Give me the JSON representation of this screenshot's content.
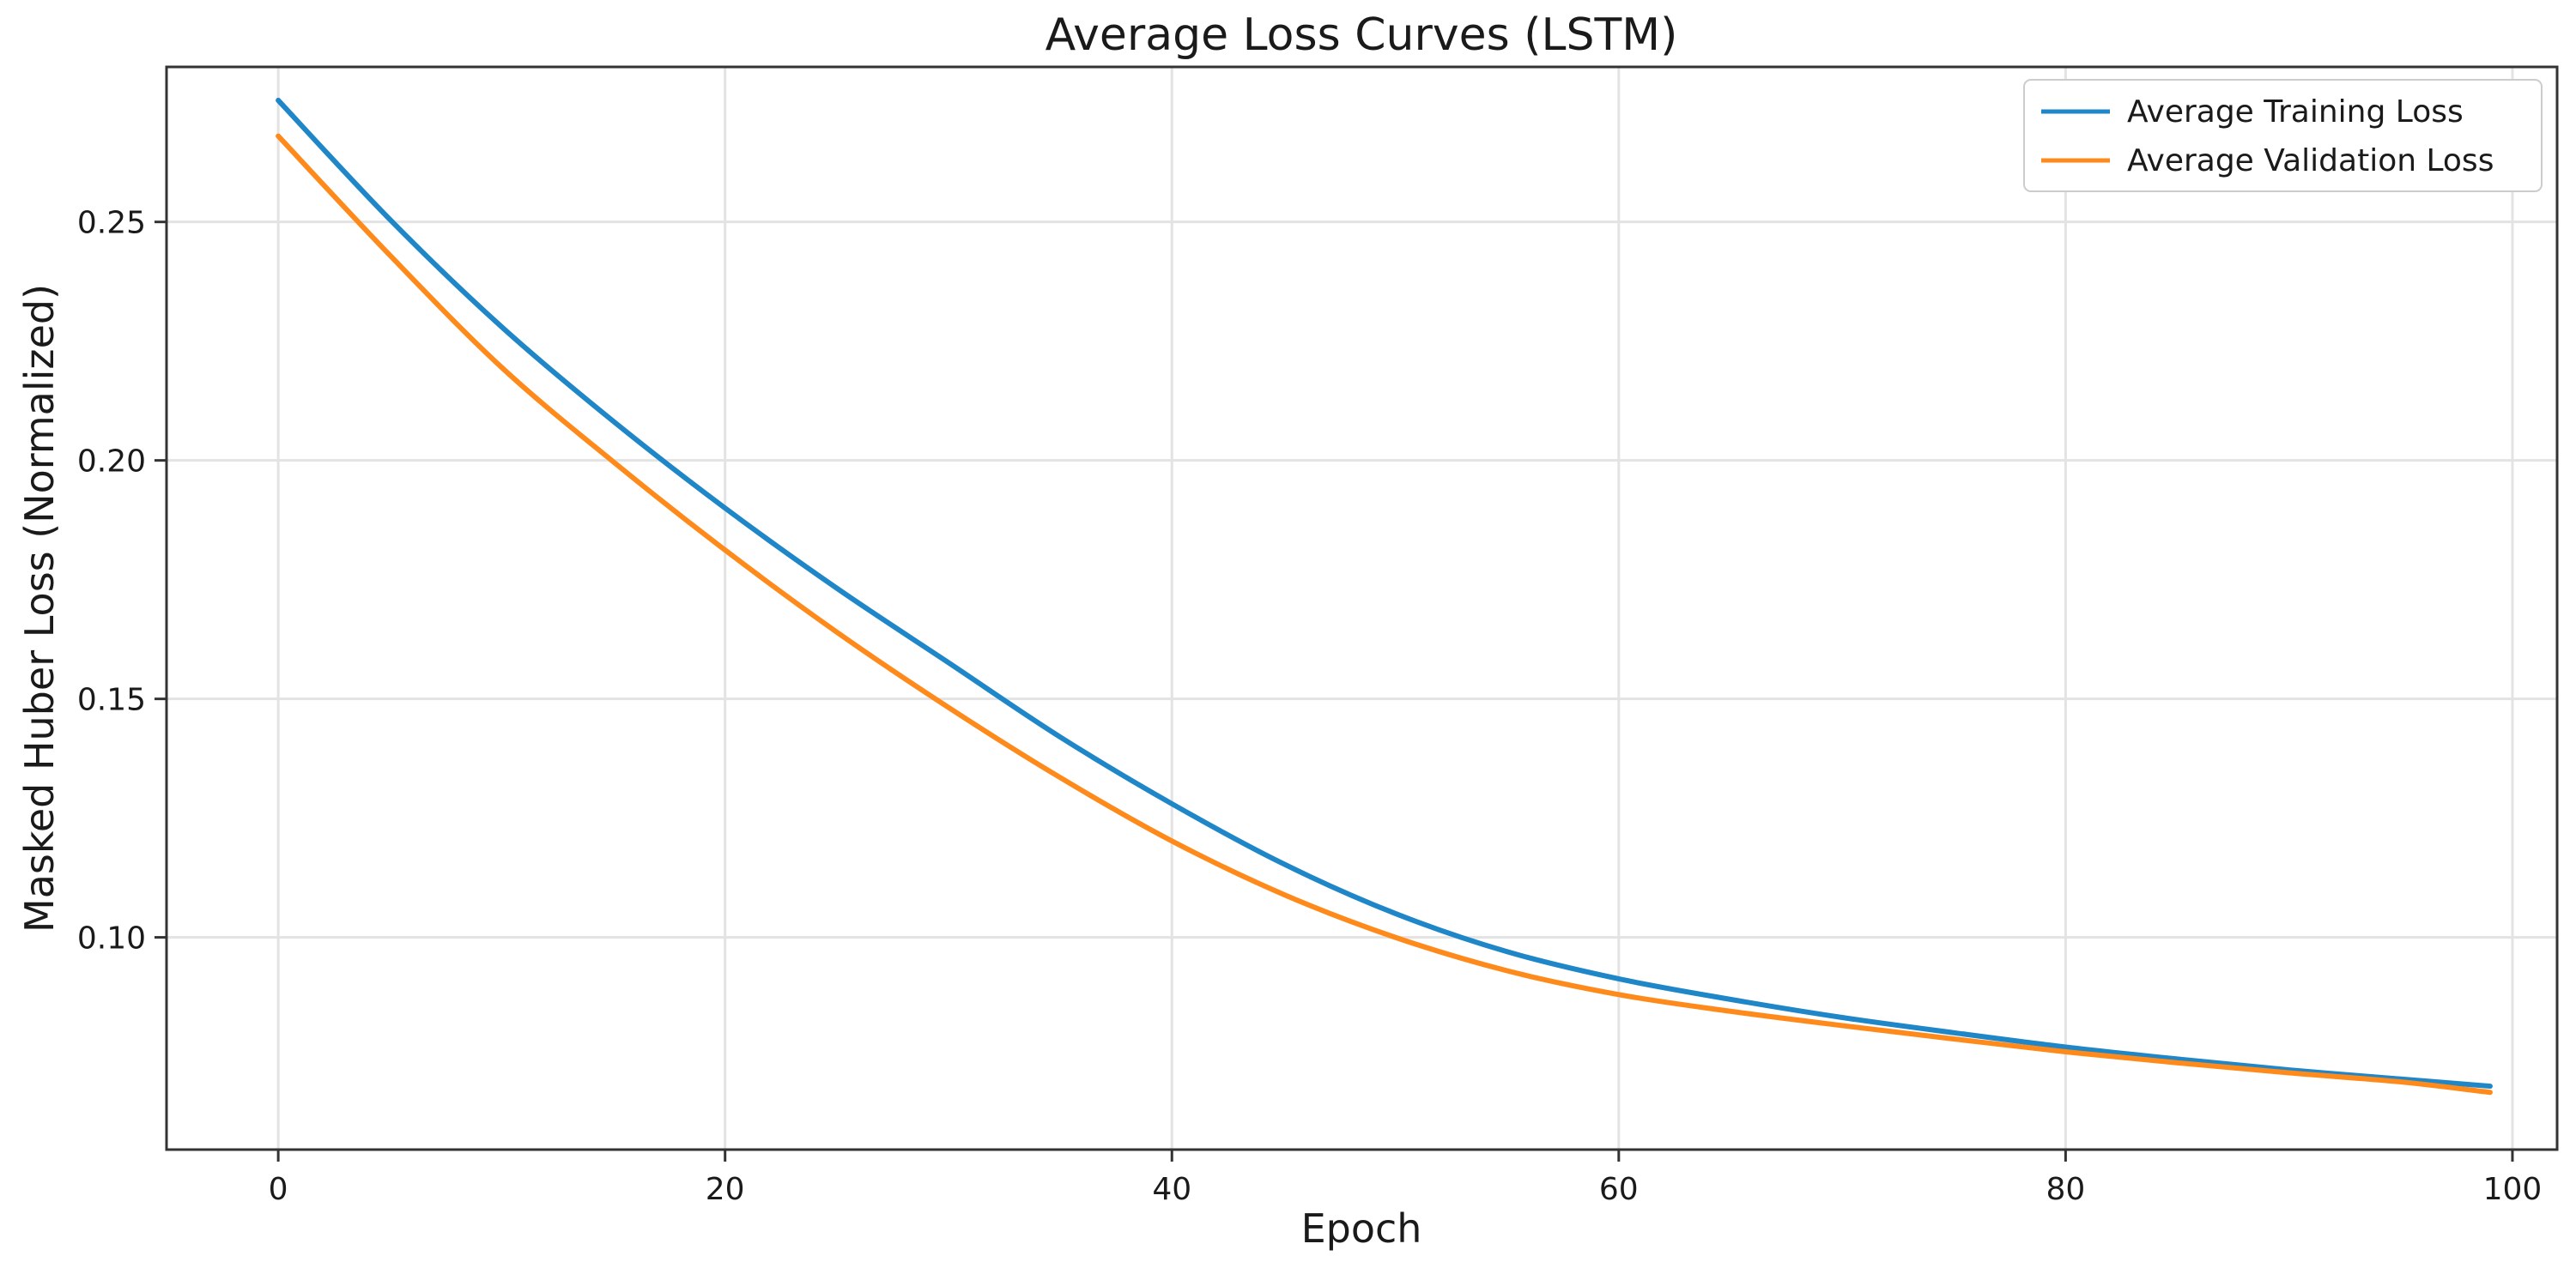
{
  "chart_data": {
    "type": "line",
    "title": "Average Loss Curves (LSTM)",
    "xlabel": "Epoch",
    "ylabel": "Masked Huber Loss (Normalized)",
    "xlim": [
      -5,
      102
    ],
    "ylim": [
      0.0555,
      0.2825
    ],
    "x_ticks": [
      0,
      20,
      40,
      60,
      80,
      100
    ],
    "x_tick_labels": [
      "0",
      "20",
      "40",
      "60",
      "80",
      "100"
    ],
    "y_ticks": [
      0.1,
      0.15,
      0.2,
      0.25
    ],
    "y_tick_labels": [
      "0.10",
      "0.15",
      "0.20",
      "0.25"
    ],
    "grid": true,
    "legend_position": "top-right",
    "series": [
      {
        "name": "Average Training Loss",
        "color": "#1f86c8",
        "x": [
          0,
          5,
          10,
          15,
          20,
          25,
          30,
          35,
          40,
          45,
          50,
          55,
          60,
          65,
          70,
          75,
          80,
          85,
          90,
          95,
          99
        ],
        "values": [
          0.2755,
          0.2505,
          0.228,
          0.2082,
          0.19,
          0.1732,
          0.1576,
          0.142,
          0.128,
          0.1154,
          0.105,
          0.097,
          0.0913,
          0.087,
          0.0832,
          0.08,
          0.077,
          0.0745,
          0.0722,
          0.0703,
          0.0688
        ]
      },
      {
        "name": "Average Validation Loss",
        "color": "#ff8a1c",
        "x": [
          0,
          5,
          10,
          15,
          20,
          25,
          30,
          35,
          40,
          45,
          50,
          55,
          60,
          65,
          70,
          75,
          80,
          85,
          90,
          95,
          99
        ],
        "values": [
          0.268,
          0.243,
          0.2195,
          0.1997,
          0.1812,
          0.164,
          0.1482,
          0.1335,
          0.1202,
          0.109,
          0.1,
          0.093,
          0.088,
          0.0845,
          0.0815,
          0.0787,
          0.076,
          0.0737,
          0.0716,
          0.0697,
          0.0675
        ]
      }
    ]
  }
}
